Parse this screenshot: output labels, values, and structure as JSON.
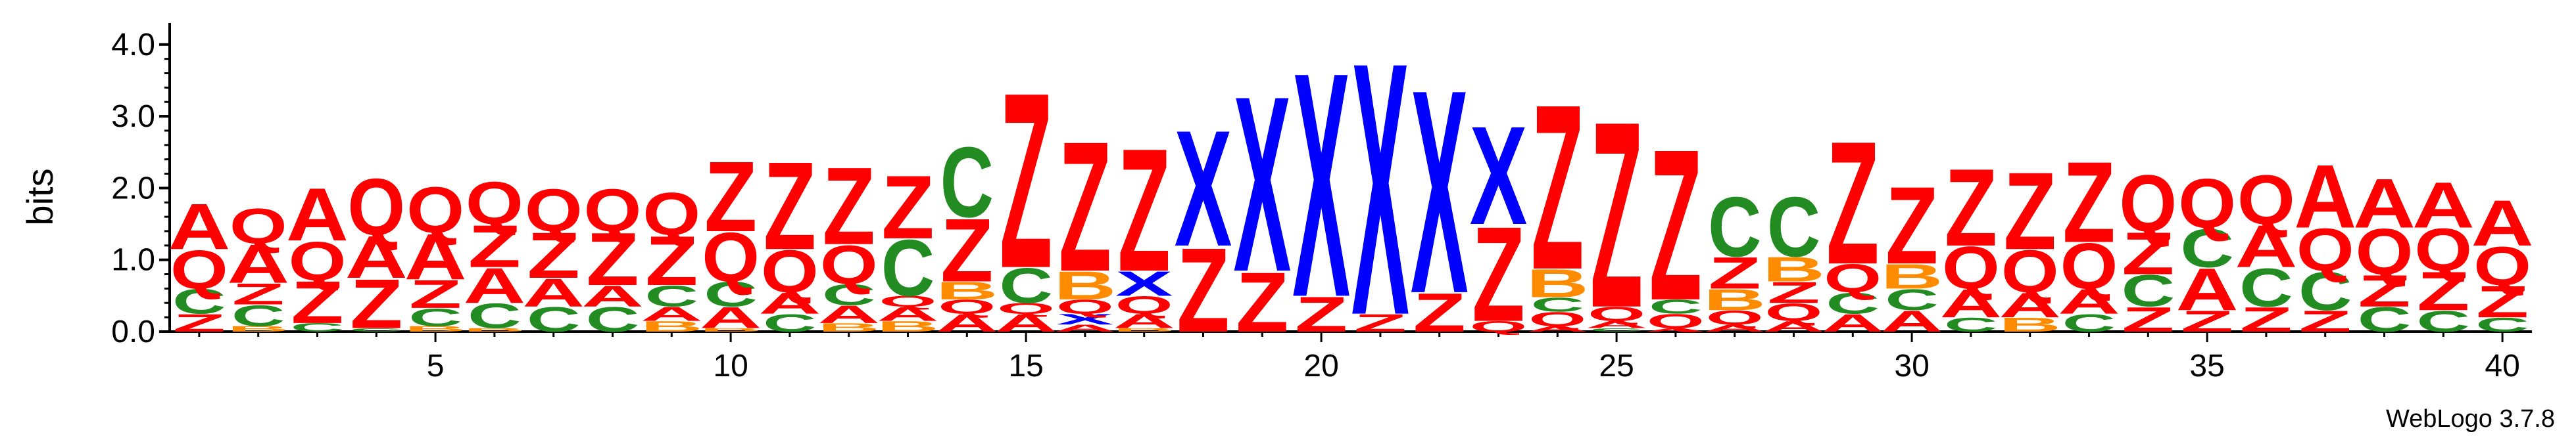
{
  "chart_data": {
    "type": "sequence-logo",
    "ylabel": "bits",
    "ylim": [
      0,
      4.3
    ],
    "y_ticks": [
      "0.0",
      "1.0",
      "2.0",
      "3.0",
      "4.0"
    ],
    "x_ticks": [
      "5",
      "10",
      "15",
      "20",
      "25",
      "30",
      "35",
      "40"
    ],
    "credit": "WebLogo 3.7.8",
    "colors": {
      "A": "#ff0000",
      "Q": "#ff0000",
      "Z": "#ff0000",
      "C": "#228b22",
      "B": "#ff8c00",
      "X": "#0000ff"
    },
    "positions": [
      {
        "pos": 1,
        "letters": [
          [
            "Z",
            0.25
          ],
          [
            "C",
            0.35
          ],
          [
            "Q",
            0.55
          ],
          [
            "A",
            0.65
          ]
        ]
      },
      {
        "pos": 2,
        "letters": [
          [
            "B",
            0.08
          ],
          [
            "C",
            0.3
          ],
          [
            "Z",
            0.3
          ],
          [
            "A",
            0.55
          ],
          [
            "Q",
            0.5
          ]
        ]
      },
      {
        "pos": 3,
        "letters": [
          [
            "C",
            0.12
          ],
          [
            "Z",
            0.6
          ],
          [
            "Q",
            0.55
          ],
          [
            "A",
            0.75
          ]
        ]
      },
      {
        "pos": 4,
        "letters": [
          [
            "C",
            0.05
          ],
          [
            "Z",
            0.7
          ],
          [
            "A",
            0.6
          ],
          [
            "Q",
            0.8
          ]
        ]
      },
      {
        "pos": 5,
        "letters": [
          [
            "B",
            0.08
          ],
          [
            "C",
            0.25
          ],
          [
            "Z",
            0.4
          ],
          [
            "A",
            0.65
          ],
          [
            "Q",
            0.65
          ]
        ]
      },
      {
        "pos": 6,
        "letters": [
          [
            "B",
            0.05
          ],
          [
            "C",
            0.35
          ],
          [
            "A",
            0.5
          ],
          [
            "Z",
            0.6
          ],
          [
            "Q",
            0.6
          ]
        ]
      },
      {
        "pos": 7,
        "letters": [
          [
            "C",
            0.35
          ],
          [
            "A",
            0.4
          ],
          [
            "Z",
            0.65
          ],
          [
            "Q",
            0.6
          ]
        ]
      },
      {
        "pos": 8,
        "letters": [
          [
            "C",
            0.35
          ],
          [
            "A",
            0.3
          ],
          [
            "Z",
            0.75
          ],
          [
            "Q",
            0.6
          ]
        ]
      },
      {
        "pos": 9,
        "letters": [
          [
            "B",
            0.15
          ],
          [
            "A",
            0.2
          ],
          [
            "C",
            0.3
          ],
          [
            "Z",
            0.7
          ],
          [
            "Q",
            0.6
          ]
        ]
      },
      {
        "pos": 10,
        "letters": [
          [
            "B",
            0.05
          ],
          [
            "A",
            0.3
          ],
          [
            "C",
            0.35
          ],
          [
            "Q",
            0.7
          ],
          [
            "Z",
            1.0
          ]
        ]
      },
      {
        "pos": 11,
        "letters": [
          [
            "C",
            0.25
          ],
          [
            "A",
            0.3
          ],
          [
            "Q",
            0.6
          ],
          [
            "Z",
            1.25
          ]
        ]
      },
      {
        "pos": 12,
        "letters": [
          [
            "B",
            0.12
          ],
          [
            "A",
            0.25
          ],
          [
            "C",
            0.3
          ],
          [
            "Q",
            0.55
          ],
          [
            "Z",
            1.1
          ]
        ]
      },
      {
        "pos": 13,
        "letters": [
          [
            "B",
            0.15
          ],
          [
            "A",
            0.2
          ],
          [
            "Q",
            0.15
          ],
          [
            "C",
            0.8
          ],
          [
            "Z",
            0.9
          ]
        ]
      },
      {
        "pos": 14,
        "letters": [
          [
            "A",
            0.25
          ],
          [
            "Q",
            0.2
          ],
          [
            "B",
            0.25
          ],
          [
            "Z",
            0.9
          ],
          [
            "C",
            1.0
          ]
        ]
      },
      {
        "pos": 15,
        "letters": [
          [
            "A",
            0.25
          ],
          [
            "Q",
            0.15
          ],
          [
            "C",
            0.5
          ],
          [
            "Z",
            2.5
          ]
        ]
      },
      {
        "pos": 16,
        "letters": [
          [
            "A",
            0.1
          ],
          [
            "X",
            0.15
          ],
          [
            "Q",
            0.2
          ],
          [
            "B",
            0.4
          ],
          [
            "Z",
            1.85
          ]
        ]
      },
      {
        "pos": 17,
        "letters": [
          [
            "B",
            0.05
          ],
          [
            "A",
            0.2
          ],
          [
            "Q",
            0.25
          ],
          [
            "X",
            0.35
          ],
          [
            "Z",
            1.75
          ]
        ]
      },
      {
        "pos": 18,
        "letters": [
          [
            "Z",
            1.2
          ],
          [
            "X",
            1.65
          ]
        ]
      },
      {
        "pos": 19,
        "letters": [
          [
            "Z",
            0.85
          ],
          [
            "X",
            2.5
          ]
        ]
      },
      {
        "pos": 20,
        "letters": [
          [
            "Z",
            0.5
          ],
          [
            "X",
            3.2
          ]
        ]
      },
      {
        "pos": 21,
        "letters": [
          [
            "Z",
            0.25
          ],
          [
            "X",
            3.6
          ]
        ]
      },
      {
        "pos": 22,
        "letters": [
          [
            "Z",
            0.55
          ],
          [
            "X",
            2.9
          ]
        ]
      },
      {
        "pos": 23,
        "letters": [
          [
            "Q",
            0.15
          ],
          [
            "Z",
            1.35
          ],
          [
            "X",
            1.4
          ]
        ]
      },
      {
        "pos": 24,
        "letters": [
          [
            "A",
            0.08
          ],
          [
            "Q",
            0.2
          ],
          [
            "C",
            0.2
          ],
          [
            "B",
            0.4
          ],
          [
            "Z",
            2.35
          ]
        ]
      },
      {
        "pos": 25,
        "letters": [
          [
            "C",
            0.05
          ],
          [
            "A",
            0.1
          ],
          [
            "Q",
            0.2
          ],
          [
            "Z",
            2.65
          ]
        ]
      },
      {
        "pos": 26,
        "letters": [
          [
            "A",
            0.05
          ],
          [
            "Q",
            0.2
          ],
          [
            "C",
            0.2
          ],
          [
            "Z",
            2.15
          ]
        ]
      },
      {
        "pos": 27,
        "letters": [
          [
            "A",
            0.1
          ],
          [
            "Q",
            0.2
          ],
          [
            "B",
            0.3
          ],
          [
            "Z",
            0.45
          ],
          [
            "C",
            0.85
          ]
        ]
      },
      {
        "pos": 28,
        "letters": [
          [
            "A",
            0.15
          ],
          [
            "Q",
            0.25
          ],
          [
            "Z",
            0.3
          ],
          [
            "B",
            0.35
          ],
          [
            "C",
            0.85
          ]
        ]
      },
      {
        "pos": 29,
        "letters": [
          [
            "A",
            0.25
          ],
          [
            "C",
            0.3
          ],
          [
            "Q",
            0.4
          ],
          [
            "Z",
            1.75
          ]
        ]
      },
      {
        "pos": 30,
        "letters": [
          [
            "A",
            0.3
          ],
          [
            "C",
            0.3
          ],
          [
            "B",
            0.35
          ],
          [
            "Z",
            1.1
          ]
        ]
      },
      {
        "pos": 31,
        "letters": [
          [
            "C",
            0.2
          ],
          [
            "A",
            0.4
          ],
          [
            "Q",
            0.6
          ],
          [
            "Z",
            1.1
          ]
        ]
      },
      {
        "pos": 32,
        "letters": [
          [
            "B",
            0.2
          ],
          [
            "A",
            0.35
          ],
          [
            "Q",
            0.6
          ],
          [
            "Z",
            1.1
          ]
        ]
      },
      {
        "pos": 33,
        "letters": [
          [
            "C",
            0.25
          ],
          [
            "A",
            0.35
          ],
          [
            "Q",
            0.65
          ],
          [
            "Z",
            1.15
          ]
        ]
      },
      {
        "pos": 34,
        "letters": [
          [
            "Z",
            0.35
          ],
          [
            "C",
            0.45
          ],
          [
            "Z",
            0.6
          ],
          [
            "Q",
            0.8
          ]
        ]
      },
      {
        "pos": 35,
        "letters": [
          [
            "Z",
            0.3
          ],
          [
            "A",
            0.6
          ],
          [
            "C",
            0.55
          ],
          [
            "Q",
            0.7
          ]
        ]
      },
      {
        "pos": 36,
        "letters": [
          [
            "Z",
            0.35
          ],
          [
            "C",
            0.55
          ],
          [
            "A",
            0.6
          ],
          [
            "Q",
            0.7
          ]
        ]
      },
      {
        "pos": 37,
        "letters": [
          [
            "Z",
            0.3
          ],
          [
            "C",
            0.55
          ],
          [
            "Q",
            0.6
          ],
          [
            "A",
            0.9
          ]
        ]
      },
      {
        "pos": 38,
        "letters": [
          [
            "C",
            0.35
          ],
          [
            "Z",
            0.45
          ],
          [
            "Q",
            0.65
          ],
          [
            "A",
            0.7
          ]
        ]
      },
      {
        "pos": 39,
        "letters": [
          [
            "C",
            0.3
          ],
          [
            "Z",
            0.55
          ],
          [
            "Q",
            0.6
          ],
          [
            "A",
            0.65
          ]
        ]
      },
      {
        "pos": 40,
        "letters": [
          [
            "C",
            0.2
          ],
          [
            "Z",
            0.45
          ],
          [
            "Q",
            0.55
          ],
          [
            "A",
            0.65
          ]
        ]
      }
    ]
  }
}
